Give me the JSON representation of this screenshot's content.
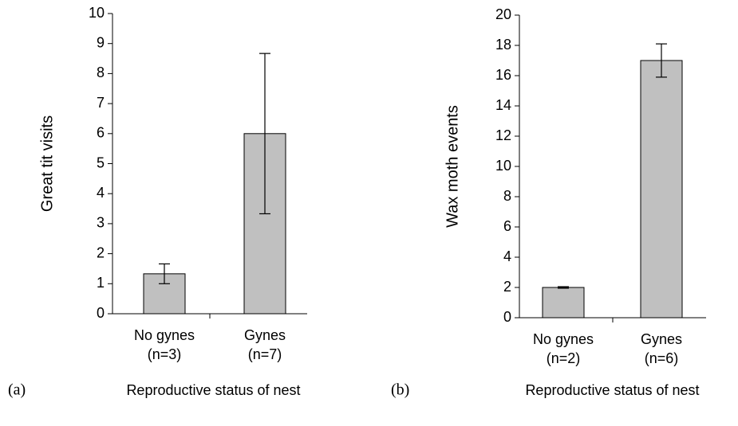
{
  "chart_data": [
    {
      "type": "bar",
      "panel": "(a)",
      "ylabel": "Great tit visits",
      "xlabel": "Reproductive status of nest",
      "categories": [
        [
          "No gynes",
          "(n=3)"
        ],
        [
          "Gynes",
          "(n=7)"
        ]
      ],
      "values": [
        1.33,
        6.0
      ],
      "errors": [
        0.33,
        2.67
      ],
      "color": "#c0c0c0",
      "ylim": [
        0,
        10
      ],
      "yticks": [
        0,
        1,
        2,
        3,
        4,
        5,
        6,
        7,
        8,
        9,
        10
      ]
    },
    {
      "type": "bar",
      "panel": "(b)",
      "ylabel": "Wax moth events",
      "xlabel": "Reproductive status of nest",
      "categories": [
        [
          "No gynes",
          "(n=2)"
        ],
        [
          "Gynes",
          "(n=6)"
        ]
      ],
      "values": [
        2.0,
        17.0
      ],
      "errors": [
        0.05,
        1.1
      ],
      "color": "#c0c0c0",
      "ylim": [
        0,
        20
      ],
      "yticks": [
        0,
        2,
        4,
        6,
        8,
        10,
        12,
        14,
        16,
        18,
        20
      ]
    }
  ]
}
